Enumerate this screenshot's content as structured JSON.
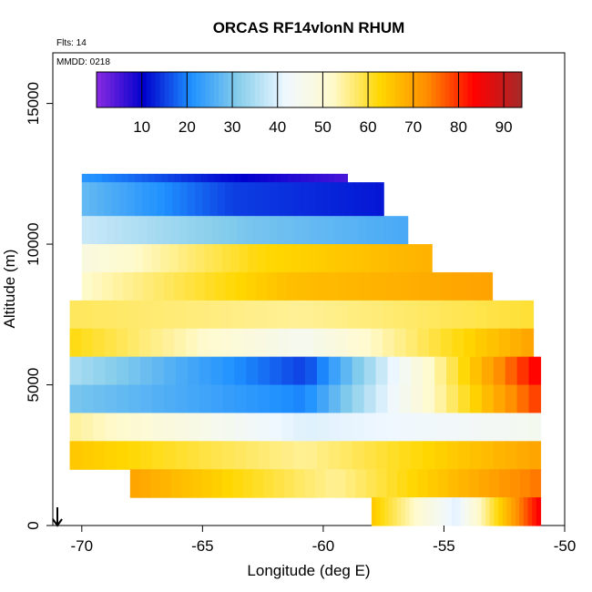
{
  "chart_data": {
    "type": "heatmap",
    "title": "ORCAS RF14vlonN RHUM",
    "flights_note": "Flts: 14",
    "date_note": "MMDD: 0218",
    "xlabel": "Longitude (deg E)",
    "ylabel": "Altitude (m)",
    "xlim": [
      -71.2,
      -50
    ],
    "ylim": [
      0,
      16800
    ],
    "x_ticks": [
      -70,
      -65,
      -60,
      -55,
      -50
    ],
    "y_ticks": [
      0,
      5000,
      10000,
      15000
    ],
    "x_tick_labels": [
      "-70",
      "-65",
      "-60",
      "-55",
      "-50"
    ],
    "y_tick_labels": [
      "0",
      "5000",
      "10000",
      "15000"
    ],
    "colorbar": {
      "range": [
        0,
        94
      ],
      "ticks": [
        10,
        20,
        30,
        40,
        50,
        60,
        70,
        80,
        90
      ],
      "tick_labels": [
        "10",
        "20",
        "30",
        "40",
        "50",
        "60",
        "70",
        "80",
        "90"
      ],
      "colors": [
        "#8a2be2",
        "#0000cd",
        "#1e90ff",
        "#87ceeb",
        "#f0f8ff",
        "#fffacd",
        "#ffd700",
        "#ff8c00",
        "#ff0000",
        "#a52a2a"
      ]
    },
    "sections": [
      {
        "alt_from": 12200,
        "alt_to": 12500,
        "lon_from": -70.0,
        "lon_to": -59.0,
        "rh_west": 22,
        "rh_mid": 12,
        "rh_east": 5
      },
      {
        "alt_from": 11000,
        "alt_to": 12200,
        "lon_from": -70.0,
        "lon_to": -57.5,
        "rh_west": 28,
        "rh_mid": 15,
        "rh_east": 12
      },
      {
        "alt_from": 10000,
        "alt_to": 11000,
        "lon_from": -70.0,
        "lon_to": -56.5,
        "rh_west": 38,
        "rh_mid": 30,
        "rh_east": 25
      },
      {
        "alt_from": 9000,
        "alt_to": 10000,
        "lon_from": -70.0,
        "lon_to": -55.5,
        "rh_west": 48,
        "rh_mid": 62,
        "rh_east": 68
      },
      {
        "alt_from": 8000,
        "alt_to": 9000,
        "lon_from": -70.0,
        "lon_to": -53.0,
        "rh_west": 52,
        "rh_mid": 66,
        "rh_east": 70
      },
      {
        "alt_from": 7000,
        "alt_to": 8000,
        "lon_from": -70.5,
        "lon_to": -51.3,
        "rh_west": 58,
        "rh_mid": 55,
        "rh_east": 60
      },
      {
        "alt_from": 6000,
        "alt_to": 7000,
        "lon_from": -70.5,
        "lon_to": -51.3,
        "rh_west": 62,
        "rh_mid": 45,
        "rh_east": 70
      },
      {
        "alt_from": 5000,
        "alt_to": 6000,
        "lon_from": -70.5,
        "lon_to": -51.0,
        "rh_west": 35,
        "rh_mid": 15,
        "rh_east": 85
      },
      {
        "alt_from": 4000,
        "alt_to": 5000,
        "lon_from": -70.5,
        "lon_to": -51.0,
        "rh_west": 30,
        "rh_mid": 20,
        "rh_east": 80
      },
      {
        "alt_from": 3000,
        "alt_to": 4000,
        "lon_from": -70.5,
        "lon_to": -51.0,
        "rh_west": 55,
        "rh_mid": 40,
        "rh_east": 45
      },
      {
        "alt_from": 2000,
        "alt_to": 3000,
        "lon_from": -70.5,
        "lon_to": -51.0,
        "rh_west": 65,
        "rh_mid": 55,
        "rh_east": 70
      },
      {
        "alt_from": 1000,
        "alt_to": 2000,
        "lon_from": -68.0,
        "lon_to": -51.0,
        "rh_west": 70,
        "rh_mid": 55,
        "rh_east": 75
      },
      {
        "alt_from": 0,
        "alt_to": 1000,
        "lon_from": -58.0,
        "lon_to": -51.0,
        "rh_west": 65,
        "rh_mid": 40,
        "rh_east": 85
      }
    ],
    "grid": false
  }
}
